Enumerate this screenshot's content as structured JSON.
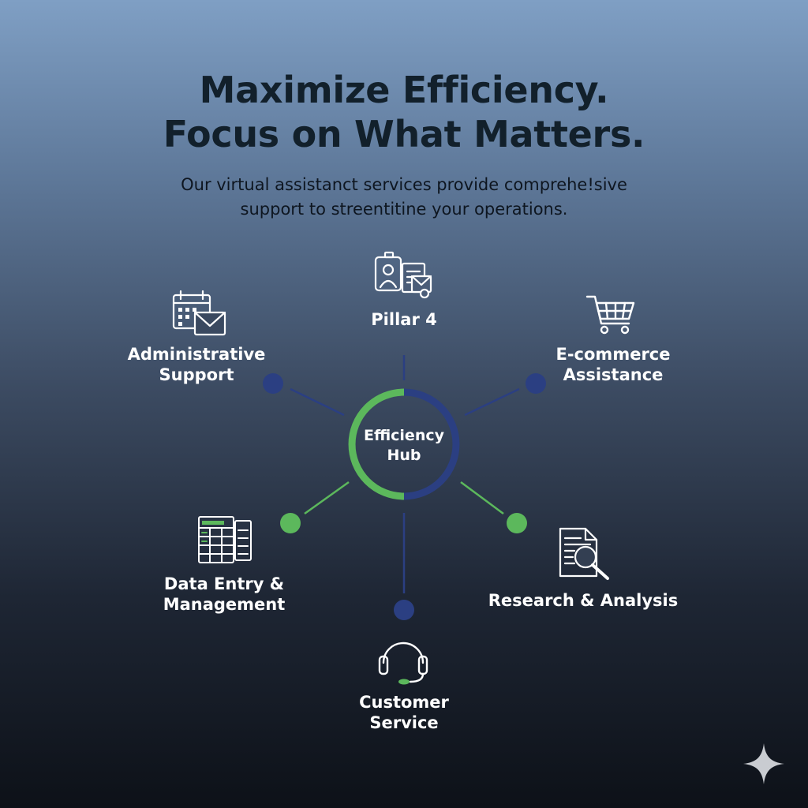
{
  "header": {
    "headline_line1": "Maximize Efficiency.",
    "headline_line2": "Focus on What Matters.",
    "subtitle_line1": "Our virtual assistanct services provide comprehe!sive",
    "subtitle_line2": "support to streentitine your operations."
  },
  "hub": {
    "label_line1": "Efficiency",
    "label_line2": "Hub"
  },
  "nodes": {
    "administrative": {
      "line1": "Administrative",
      "line2": "Support",
      "icon": "calendar-mail-icon"
    },
    "pillar4": {
      "line1": "Pillar 4",
      "icon": "id-badge-documents-icon"
    },
    "ecommerce": {
      "line1": "E-commerce",
      "line2": "Assistance",
      "icon": "shopping-cart-icon"
    },
    "data_entry": {
      "line1": "Data Entry &",
      "line2": "Management",
      "icon": "spreadsheet-icon"
    },
    "research": {
      "line1": "Research & Analysis",
      "icon": "document-magnifier-icon"
    },
    "customer_service": {
      "line1": "Customer",
      "line2": "Service",
      "icon": "headset-icon"
    }
  },
  "colors": {
    "green": "#5cb85c",
    "navy": "#2b3f82",
    "headline": "#12202b",
    "label": "#ffffff"
  }
}
